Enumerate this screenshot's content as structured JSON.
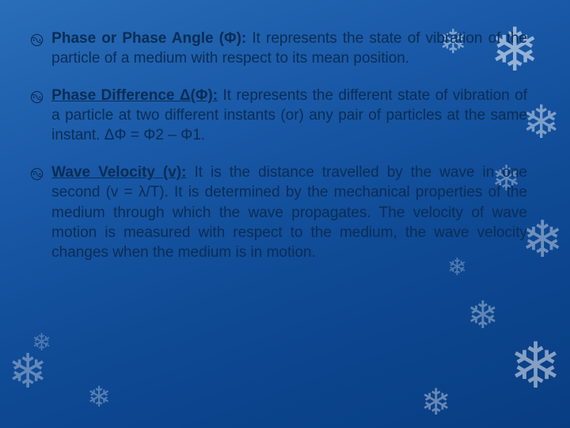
{
  "background": {
    "gradient_colors": [
      "#2a6db8",
      "#1a5aa8",
      "#0f4a95",
      "#083d82"
    ],
    "gradient_angle_deg": 160
  },
  "text_color": "#0a2d55",
  "bullet_glyph": "࿊",
  "font_family": "Verdana",
  "font_size_pt": 14,
  "line_height": 1.32,
  "text_align": "justify",
  "snowflake_glyph": "❄",
  "snowflake_color_base": "rgba(255,255,255,0.4)",
  "items": [
    {
      "title": "Phase or Phase Angle (Φ):",
      "title_underlined": false,
      "body": " It represents the state of vibration of the particle of a medium with respect to its mean position."
    },
    {
      "title": "Phase Difference Δ(Φ):",
      "title_underlined": true,
      "body": " It represents the different state of vibration of a particle at two different instants (or) any pair of particles at the same instant. ΔΦ = Φ2 – Φ1."
    },
    {
      "title": "Wave Velocity (v):",
      "title_underlined": true,
      "body": " It is the distance travelled by the wave in one second (v = λ/T). It is determined by the mechanical properties of the medium through which the wave propagates. The velocity of wave motion is measured with respect to the medium, the wave velocity changes when the medium is in motion."
    }
  ]
}
